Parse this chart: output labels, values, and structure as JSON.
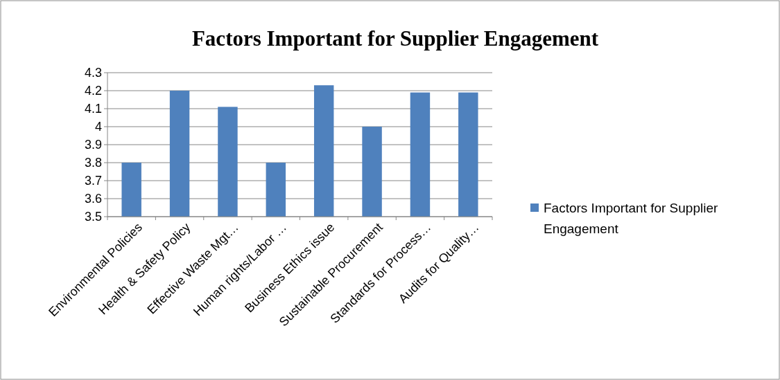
{
  "chart_data": {
    "type": "bar",
    "title": "Factors Important for Supplier Engagement",
    "categories": [
      "Environmental Policies",
      "Health & Safety Policy",
      "Effective Waste Mgt…",
      "Human rights/Labor …",
      "Business Ethics issue",
      "Sustainable Procurement",
      "Standards for Process…",
      "Audits for Quality…"
    ],
    "series": [
      {
        "name": "Factors Important for Supplier Engagement",
        "color": "#4f81bd",
        "values": [
          3.8,
          4.2,
          4.11,
          3.8,
          4.23,
          4.0,
          4.19,
          4.19
        ]
      }
    ],
    "ylim": [
      3.5,
      4.3
    ],
    "yticks": [
      3.5,
      3.6,
      3.7,
      3.8,
      3.9,
      4,
      4.1,
      4.2,
      4.3
    ],
    "grid": "y",
    "legend": "right"
  }
}
